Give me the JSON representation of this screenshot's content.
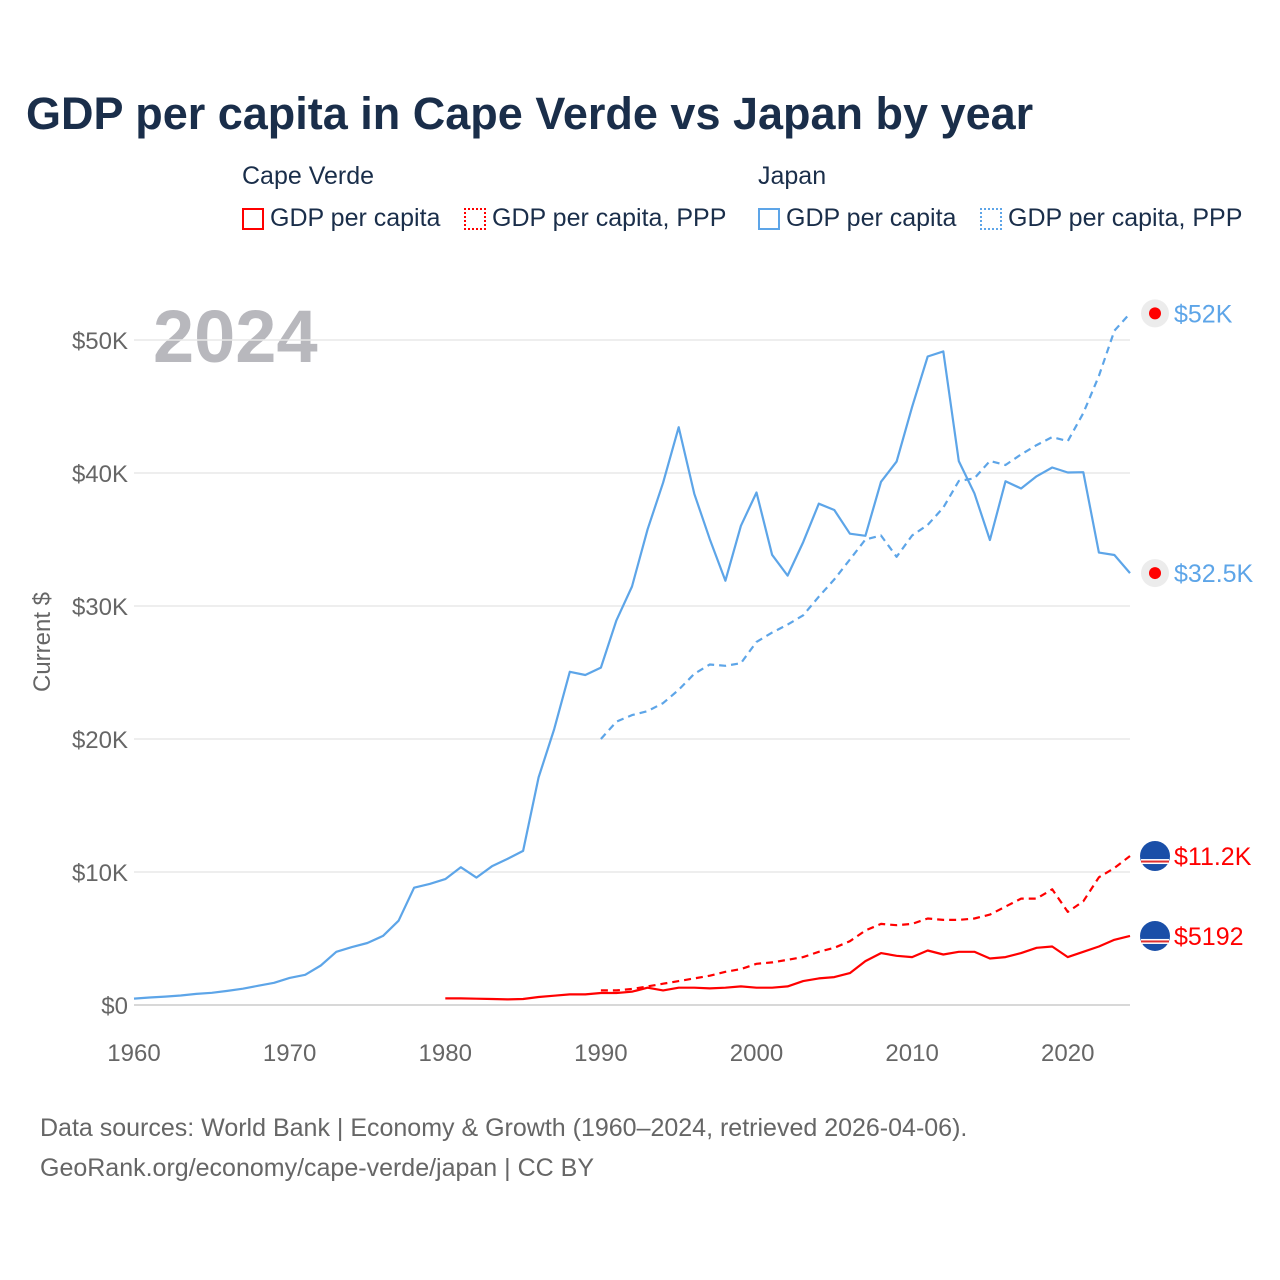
{
  "title": "GDP per capita in Cape Verde vs Japan by year",
  "legend": {
    "groups": [
      {
        "name": "Cape Verde",
        "items": [
          "GDP per capita",
          "GDP per capita, PPP"
        ],
        "color": "#ff0000"
      },
      {
        "name": "Japan",
        "items": [
          "GDP per capita",
          "GDP per capita, PPP"
        ],
        "color": "#5da5e8"
      }
    ]
  },
  "year_overlay": "2024",
  "source_lines": [
    "Data sources: World Bank | Economy & Growth (1960–2024, retrieved 2026-04-06).",
    "GeoRank.org/economy/cape-verde/japan | CC BY"
  ],
  "chart_data": {
    "type": "line",
    "title": "GDP per capita in Cape Verde vs Japan by year",
    "ylabel": "Current $",
    "xlabel": "",
    "xlim": [
      1960,
      2024
    ],
    "ylim": [
      0,
      50000
    ],
    "x_ticks": [
      "1960",
      "1970",
      "1980",
      "1990",
      "2000",
      "2010",
      "2020"
    ],
    "y_ticks": [
      "$0",
      "$10K",
      "$20K",
      "$30K",
      "$40K",
      "$50K"
    ],
    "grid": true,
    "series": [
      {
        "name": "Japan GDP per capita",
        "color": "#5da5e8",
        "dash": false,
        "start": 1960,
        "end_label": "$32.5K",
        "values": [
          479,
          563,
          633,
          717,
          836,
          920,
          1058,
          1229,
          1450,
          1669,
          2037,
          2272,
          2967,
          3997,
          4354,
          4659,
          5197,
          6335,
          8821,
          9105,
          9463,
          10361,
          9578,
          10425,
          10984,
          11584,
          17112,
          20745,
          25052,
          24813,
          25371,
          28915,
          31465,
          35766,
          39269,
          43440,
          38437,
          35022,
          31903,
          36027,
          38532,
          33846,
          32289,
          34808,
          37689,
          37218,
          35434,
          35275,
          39339,
          40855,
          44968,
          48760,
          49145,
          40898,
          38475,
          34961,
          39375,
          38834,
          39751,
          40416,
          40040,
          40059,
          34017,
          33834,
          32476
        ]
      },
      {
        "name": "Japan GDP per capita, PPP",
        "color": "#5da5e8",
        "dash": true,
        "start": 1990,
        "end_label": "$52K",
        "values": [
          20000,
          21300,
          21800,
          22100,
          22700,
          23700,
          24900,
          25600,
          25500,
          25700,
          27300,
          28000,
          28600,
          29300,
          30700,
          32000,
          33500,
          35000,
          35300,
          33700,
          35300,
          36100,
          37400,
          39400,
          39600,
          40900,
          40600,
          41400,
          42100,
          42700,
          42400,
          44500,
          47300,
          50700,
          52000
        ]
      },
      {
        "name": "Cape Verde GDP per capita",
        "color": "#ff0000",
        "dash": false,
        "start": 1980,
        "end_label": "$5192",
        "values": [
          500,
          500,
          470,
          450,
          420,
          450,
          600,
          700,
          800,
          800,
          900,
          900,
          1000,
          1300,
          1100,
          1300,
          1300,
          1250,
          1300,
          1400,
          1300,
          1300,
          1400,
          1800,
          2000,
          2100,
          2400,
          3300,
          3900,
          3700,
          3600,
          4100,
          3800,
          4000,
          4000,
          3500,
          3600,
          3900,
          4300,
          4400,
          3600,
          4000,
          4400,
          4900,
          5192
        ]
      },
      {
        "name": "Cape Verde GDP per capita, PPP",
        "color": "#ff0000",
        "dash": true,
        "start": 1990,
        "end_label": "$11.2K",
        "values": [
          1100,
          1100,
          1200,
          1400,
          1600,
          1800,
          2000,
          2200,
          2500,
          2700,
          3100,
          3200,
          3400,
          3600,
          4000,
          4300,
          4800,
          5600,
          6100,
          6000,
          6100,
          6500,
          6400,
          6400,
          6500,
          6800,
          7400,
          8000,
          8000,
          8700,
          7000,
          7800,
          9600,
          10300,
          11200
        ]
      }
    ]
  }
}
